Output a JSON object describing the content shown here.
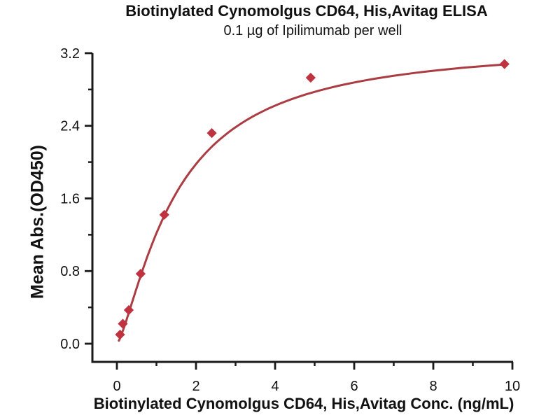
{
  "figure": {
    "title": "Biotinylated Cynomolgus CD64, His,Avitag ELISA",
    "subtitle": "0.1 µg of Ipilimumab per well"
  },
  "chart_data": {
    "type": "scatter",
    "title": "Biotinylated Cynomolgus CD64, His,Avitag ELISA",
    "subtitle": "0.1 µg of Ipilimumab per well",
    "xlabel": "Biotinylated Cynomolgus CD64, His,Avitag Conc. (ng/mL)",
    "ylabel": "Mean Abs.(OD450)",
    "x": [
      0.08,
      0.15,
      0.3,
      0.6,
      1.2,
      2.4,
      4.9,
      9.8
    ],
    "y": [
      0.1,
      0.22,
      0.37,
      0.77,
      1.42,
      2.32,
      2.93,
      3.08
    ],
    "curve": {
      "model": "4PL",
      "bottom": 0,
      "top": 3.32,
      "ec50": 1.5,
      "hill": 1.35,
      "x_start": 0.05,
      "x_end": 9.8
    },
    "xlim": [
      -0.62,
      10.02
    ],
    "ylim": [
      -0.2,
      3.2
    ],
    "xticks": [
      0,
      2,
      4,
      6,
      8,
      10
    ],
    "xtick_labels": [
      "0",
      "2",
      "4",
      "6",
      "8",
      "10"
    ],
    "xticks_minor": [
      1,
      3,
      5,
      7,
      9
    ],
    "yticks": [
      0,
      0.8,
      1.6,
      2.4,
      3.2
    ],
    "ytick_labels": [
      "0.0",
      "0.8",
      "1.6",
      "2.4",
      "3.2"
    ],
    "yticks_minor": [
      0.4,
      1.2,
      2.0,
      2.8
    ],
    "grid": false,
    "legend": "none",
    "marker": "diamond",
    "colors": {
      "curve": "#aa3c42",
      "marker": "#bf3340",
      "axis": "#1a1a1a",
      "text": "#111111",
      "background": "#ffffff"
    }
  }
}
